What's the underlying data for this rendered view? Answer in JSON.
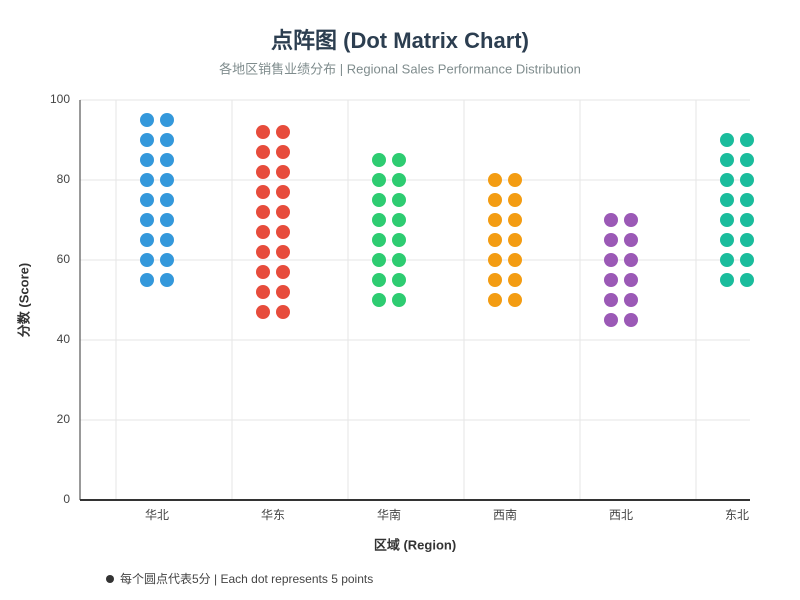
{
  "chart_data": {
    "type": "dot_matrix",
    "title": "点阵图 (Dot Matrix Chart)",
    "subtitle": "各地区销售业绩分布 | Regional Sales Performance Distribution",
    "xlabel": "区域 (Region)",
    "ylabel": "分数 (Score)",
    "note": "每个圆点代表5分 | Each dot represents 5 points",
    "categories": [
      "华北",
      "华东",
      "华南",
      "西南",
      "西北",
      "东北"
    ],
    "colors": [
      "#3498db",
      "#e74c3c",
      "#2ecc71",
      "#f39c12",
      "#9b59b6",
      "#1abc9c"
    ],
    "values": [
      [
        95,
        95,
        90,
        90,
        85,
        85,
        80,
        80,
        75,
        75,
        70,
        70,
        65,
        65,
        60,
        60,
        55,
        55
      ],
      [
        92,
        92,
        87,
        87,
        82,
        82,
        77,
        77,
        72,
        72,
        67,
        67,
        62,
        62,
        57,
        57,
        52,
        52,
        47,
        47
      ],
      [
        85,
        85,
        80,
        80,
        75,
        75,
        70,
        70,
        65,
        65,
        60,
        60,
        55,
        55,
        50,
        50
      ],
      [
        80,
        80,
        75,
        75,
        70,
        70,
        65,
        65,
        60,
        60,
        55,
        55,
        50,
        50
      ],
      [
        70,
        70,
        65,
        65,
        60,
        60,
        55,
        55,
        50,
        50,
        45,
        45
      ],
      [
        90,
        90,
        85,
        85,
        80,
        80,
        75,
        75,
        70,
        70,
        65,
        65,
        60,
        60,
        55,
        55
      ]
    ],
    "ylim": [
      0,
      100
    ],
    "yticks": [
      0,
      20,
      40,
      60,
      80,
      100
    ],
    "grid": true
  }
}
